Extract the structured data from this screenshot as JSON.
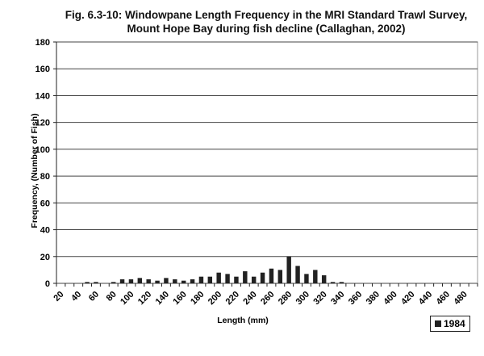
{
  "chart_data": {
    "type": "bar",
    "title": "Fig. 6.3-10: Windowpane Length Frequency in the MRI Standard Trawl Survey, Mount Hope Bay during fish decline (Callaghan, 2002)",
    "xlabel": "Length (mm)",
    "ylabel": "Frequency, (Number of Fish)",
    "ylim": [
      0,
      180
    ],
    "yticks": [
      0,
      20,
      40,
      60,
      80,
      100,
      120,
      140,
      160,
      180
    ],
    "xtick_labels": [
      "20",
      "40",
      "60",
      "80",
      "100",
      "120",
      "140",
      "160",
      "180",
      "200",
      "220",
      "240",
      "260",
      "280",
      "300",
      "320",
      "340",
      "360",
      "380",
      "400",
      "420",
      "440",
      "460",
      "480"
    ],
    "categories": [
      20,
      30,
      40,
      50,
      60,
      70,
      80,
      90,
      100,
      110,
      120,
      130,
      140,
      150,
      160,
      170,
      180,
      190,
      200,
      210,
      220,
      230,
      240,
      250,
      260,
      270,
      280,
      290,
      300,
      310,
      320,
      330,
      340,
      350,
      360,
      370,
      380,
      390,
      400,
      410,
      420,
      430,
      440,
      450,
      460,
      470,
      480,
      490
    ],
    "series": [
      {
        "name": "1984",
        "color": "#222222",
        "values": [
          0,
          0,
          0,
          1,
          1,
          0,
          1,
          3,
          3,
          4,
          3,
          2,
          4,
          3,
          2,
          3,
          5,
          5,
          8,
          7,
          5,
          9,
          5,
          8,
          11,
          10,
          20,
          13,
          7,
          10,
          6,
          1,
          1,
          0,
          0,
          0,
          0,
          0,
          0,
          0,
          0,
          0,
          0,
          0,
          0,
          0,
          0,
          0
        ]
      }
    ],
    "grid": true,
    "legend": "bottom-right"
  }
}
